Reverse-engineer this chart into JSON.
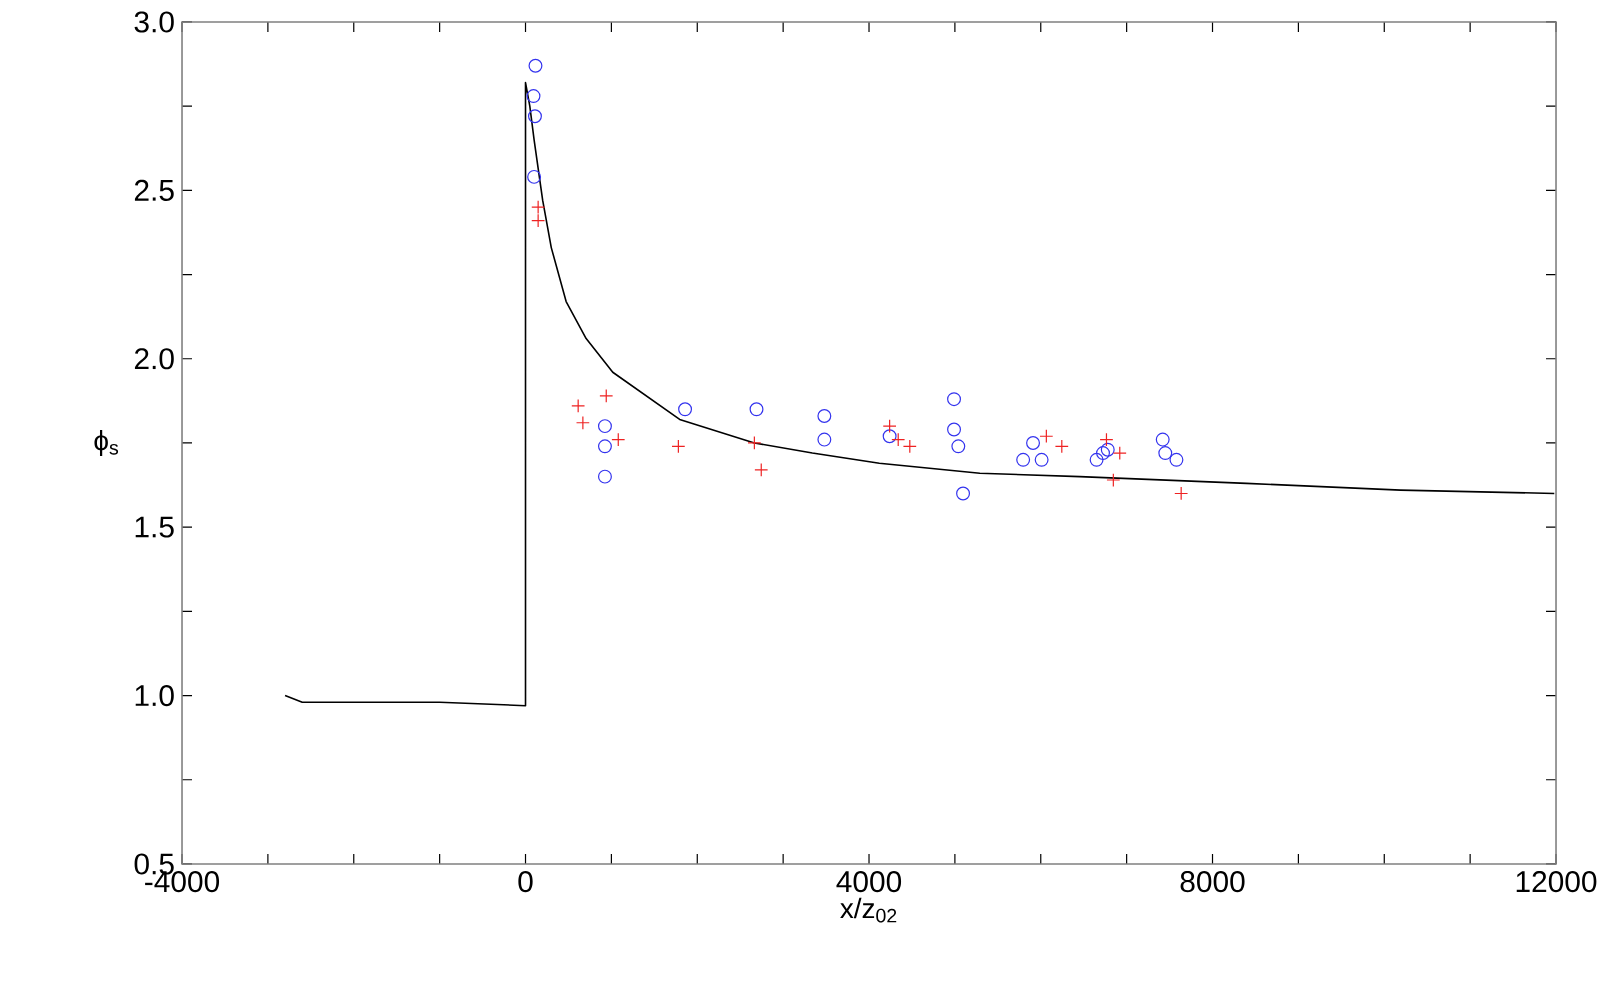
{
  "chart_data": {
    "type": "scatter",
    "xlabel": "x/z$_{02}$",
    "ylabel": "ϕ$_{s}$",
    "xlim": [
      -4000,
      12000
    ],
    "ylim": [
      0.5,
      3.0
    ],
    "xticks": [
      -4000,
      {
        "value": -3000,
        "label": null
      },
      {
        "value": -2000,
        "label": null
      },
      {
        "value": -1000,
        "label": null
      },
      0,
      {
        "value": 1000,
        "label": null
      },
      {
        "value": 2000,
        "label": null
      },
      {
        "value": 3000,
        "label": null
      },
      4000,
      {
        "value": 5000,
        "label": null
      },
      {
        "value": 6000,
        "label": null
      },
      {
        "value": 7000,
        "label": null
      },
      8000,
      {
        "value": 9000,
        "label": null
      },
      {
        "value": 10000,
        "label": null
      },
      {
        "value": 11000,
        "label": null
      },
      12000
    ],
    "yticks": [
      {
        "value": 0.5,
        "label": "0.5"
      },
      {
        "value": 0.75,
        "label": null
      },
      {
        "value": 1.0,
        "label": "1.0"
      },
      {
        "value": 1.25,
        "label": null
      },
      {
        "value": 1.5,
        "label": "1.5"
      },
      {
        "value": 1.75,
        "label": null
      },
      {
        "value": 2.0,
        "label": "2.0"
      },
      {
        "value": 2.25,
        "label": null
      },
      {
        "value": 2.5,
        "label": "2.5"
      },
      {
        "value": 2.75,
        "label": null
      },
      {
        "value": 3.0,
        "label": "3.0"
      }
    ],
    "grid": false,
    "series": [
      {
        "type": "line",
        "color": "#000000",
        "marker": "none",
        "line_style": "solid",
        "x": [
          -2800,
          -2600,
          -1000,
          0,
          0,
          50,
          100,
          200,
          300,
          473,
          706,
          1016,
          1795,
          2665,
          3340,
          4120,
          5290,
          6455,
          8395,
          10190,
          11980
        ],
        "values": [
          1.0,
          0.98,
          0.98,
          0.97,
          2.82,
          2.75,
          2.65,
          2.47,
          2.33,
          2.17,
          2.06,
          1.96,
          1.82,
          1.75,
          1.72,
          1.69,
          1.66,
          1.65,
          1.63,
          1.61,
          1.6
        ]
      },
      {
        "color": "#3333ee",
        "marker": "circle",
        "x": [
          116,
          93,
          110,
          100,
          925,
          925,
          925,
          1858,
          2690,
          3480,
          3480,
          4240,
          4990,
          4990,
          5040,
          5095,
          5795,
          5910,
          6010,
          6650,
          6725,
          6780,
          7420,
          7450,
          7580
        ],
        "values": [
          2.87,
          2.78,
          2.72,
          2.54,
          1.8,
          1.74,
          1.65,
          1.85,
          1.85,
          1.83,
          1.76,
          1.77,
          1.88,
          1.79,
          1.74,
          1.6,
          1.7,
          1.75,
          1.7,
          1.7,
          1.72,
          1.73,
          1.76,
          1.72,
          1.7
        ]
      },
      {
        "color": "#ee2222",
        "marker": "cross",
        "x": [
          147,
          147,
          613,
          668,
          940,
          1080,
          1780,
          2665,
          2745,
          4240,
          4340,
          4475,
          6065,
          6245,
          6765,
          6920,
          6845,
          7635
        ],
        "values": [
          2.45,
          2.41,
          1.86,
          1.81,
          1.89,
          1.76,
          1.74,
          1.75,
          1.67,
          1.8,
          1.76,
          1.74,
          1.77,
          1.74,
          1.76,
          1.72,
          1.64,
          1.6
        ]
      }
    ]
  }
}
